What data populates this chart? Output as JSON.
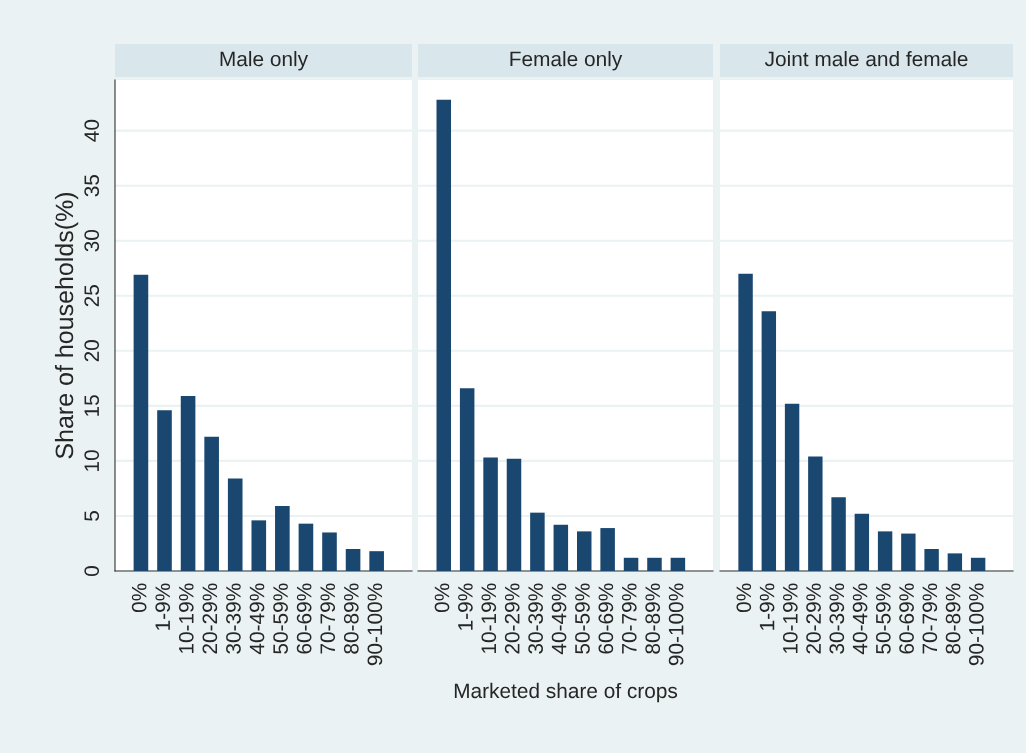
{
  "chart_data": [
    {
      "type": "bar",
      "title": "Male only",
      "ylabel": "Share of households(%)",
      "categories": [
        "0%",
        "1-9%",
        "10-19%",
        "20-29%",
        "30-39%",
        "40-49%",
        "50-59%",
        "60-69%",
        "70-79%",
        "80-89%",
        "90-100%"
      ],
      "values": [
        26.9,
        14.6,
        15.9,
        12.2,
        8.4,
        4.6,
        5.9,
        4.3,
        3.5,
        2.0,
        1.8
      ],
      "color": "#1a476f",
      "ylim": [
        0,
        44.6
      ],
      "yticks": [
        0,
        5,
        10,
        15,
        20,
        25,
        30,
        35,
        40
      ],
      "grid": "y"
    },
    {
      "type": "bar",
      "title": "Female only",
      "xlabel": "Marketed share of crops",
      "categories": [
        "0%",
        "1-9%",
        "10-19%",
        "20-29%",
        "30-39%",
        "40-49%",
        "50-59%",
        "60-69%",
        "70-79%",
        "80-89%",
        "90-100%"
      ],
      "values": [
        42.8,
        16.6,
        10.3,
        10.2,
        5.3,
        4.2,
        3.6,
        3.9,
        1.2,
        1.2,
        1.2
      ],
      "color": "#1a476f",
      "ylim": [
        0,
        44.6
      ],
      "yticks": [
        0,
        5,
        10,
        15,
        20,
        25,
        30,
        35,
        40
      ],
      "grid": "y",
      "tick_labels": "x"
    },
    {
      "type": "bar",
      "title": "Joint male and female",
      "categories": [
        "0%",
        "1-9%",
        "10-19%",
        "20-29%",
        "30-39%",
        "40-49%",
        "50-59%",
        "60-69%",
        "70-79%",
        "80-89%",
        "90-100%"
      ],
      "values": [
        27.0,
        23.6,
        15.2,
        10.4,
        6.7,
        5.2,
        3.6,
        3.4,
        2.0,
        1.6,
        1.2
      ],
      "color": "#1a476f",
      "ylim": [
        0,
        44.6
      ],
      "yticks": [
        0,
        5,
        10,
        15,
        20,
        25,
        30,
        35,
        40
      ],
      "grid": "y",
      "tick_labels": "x"
    }
  ]
}
